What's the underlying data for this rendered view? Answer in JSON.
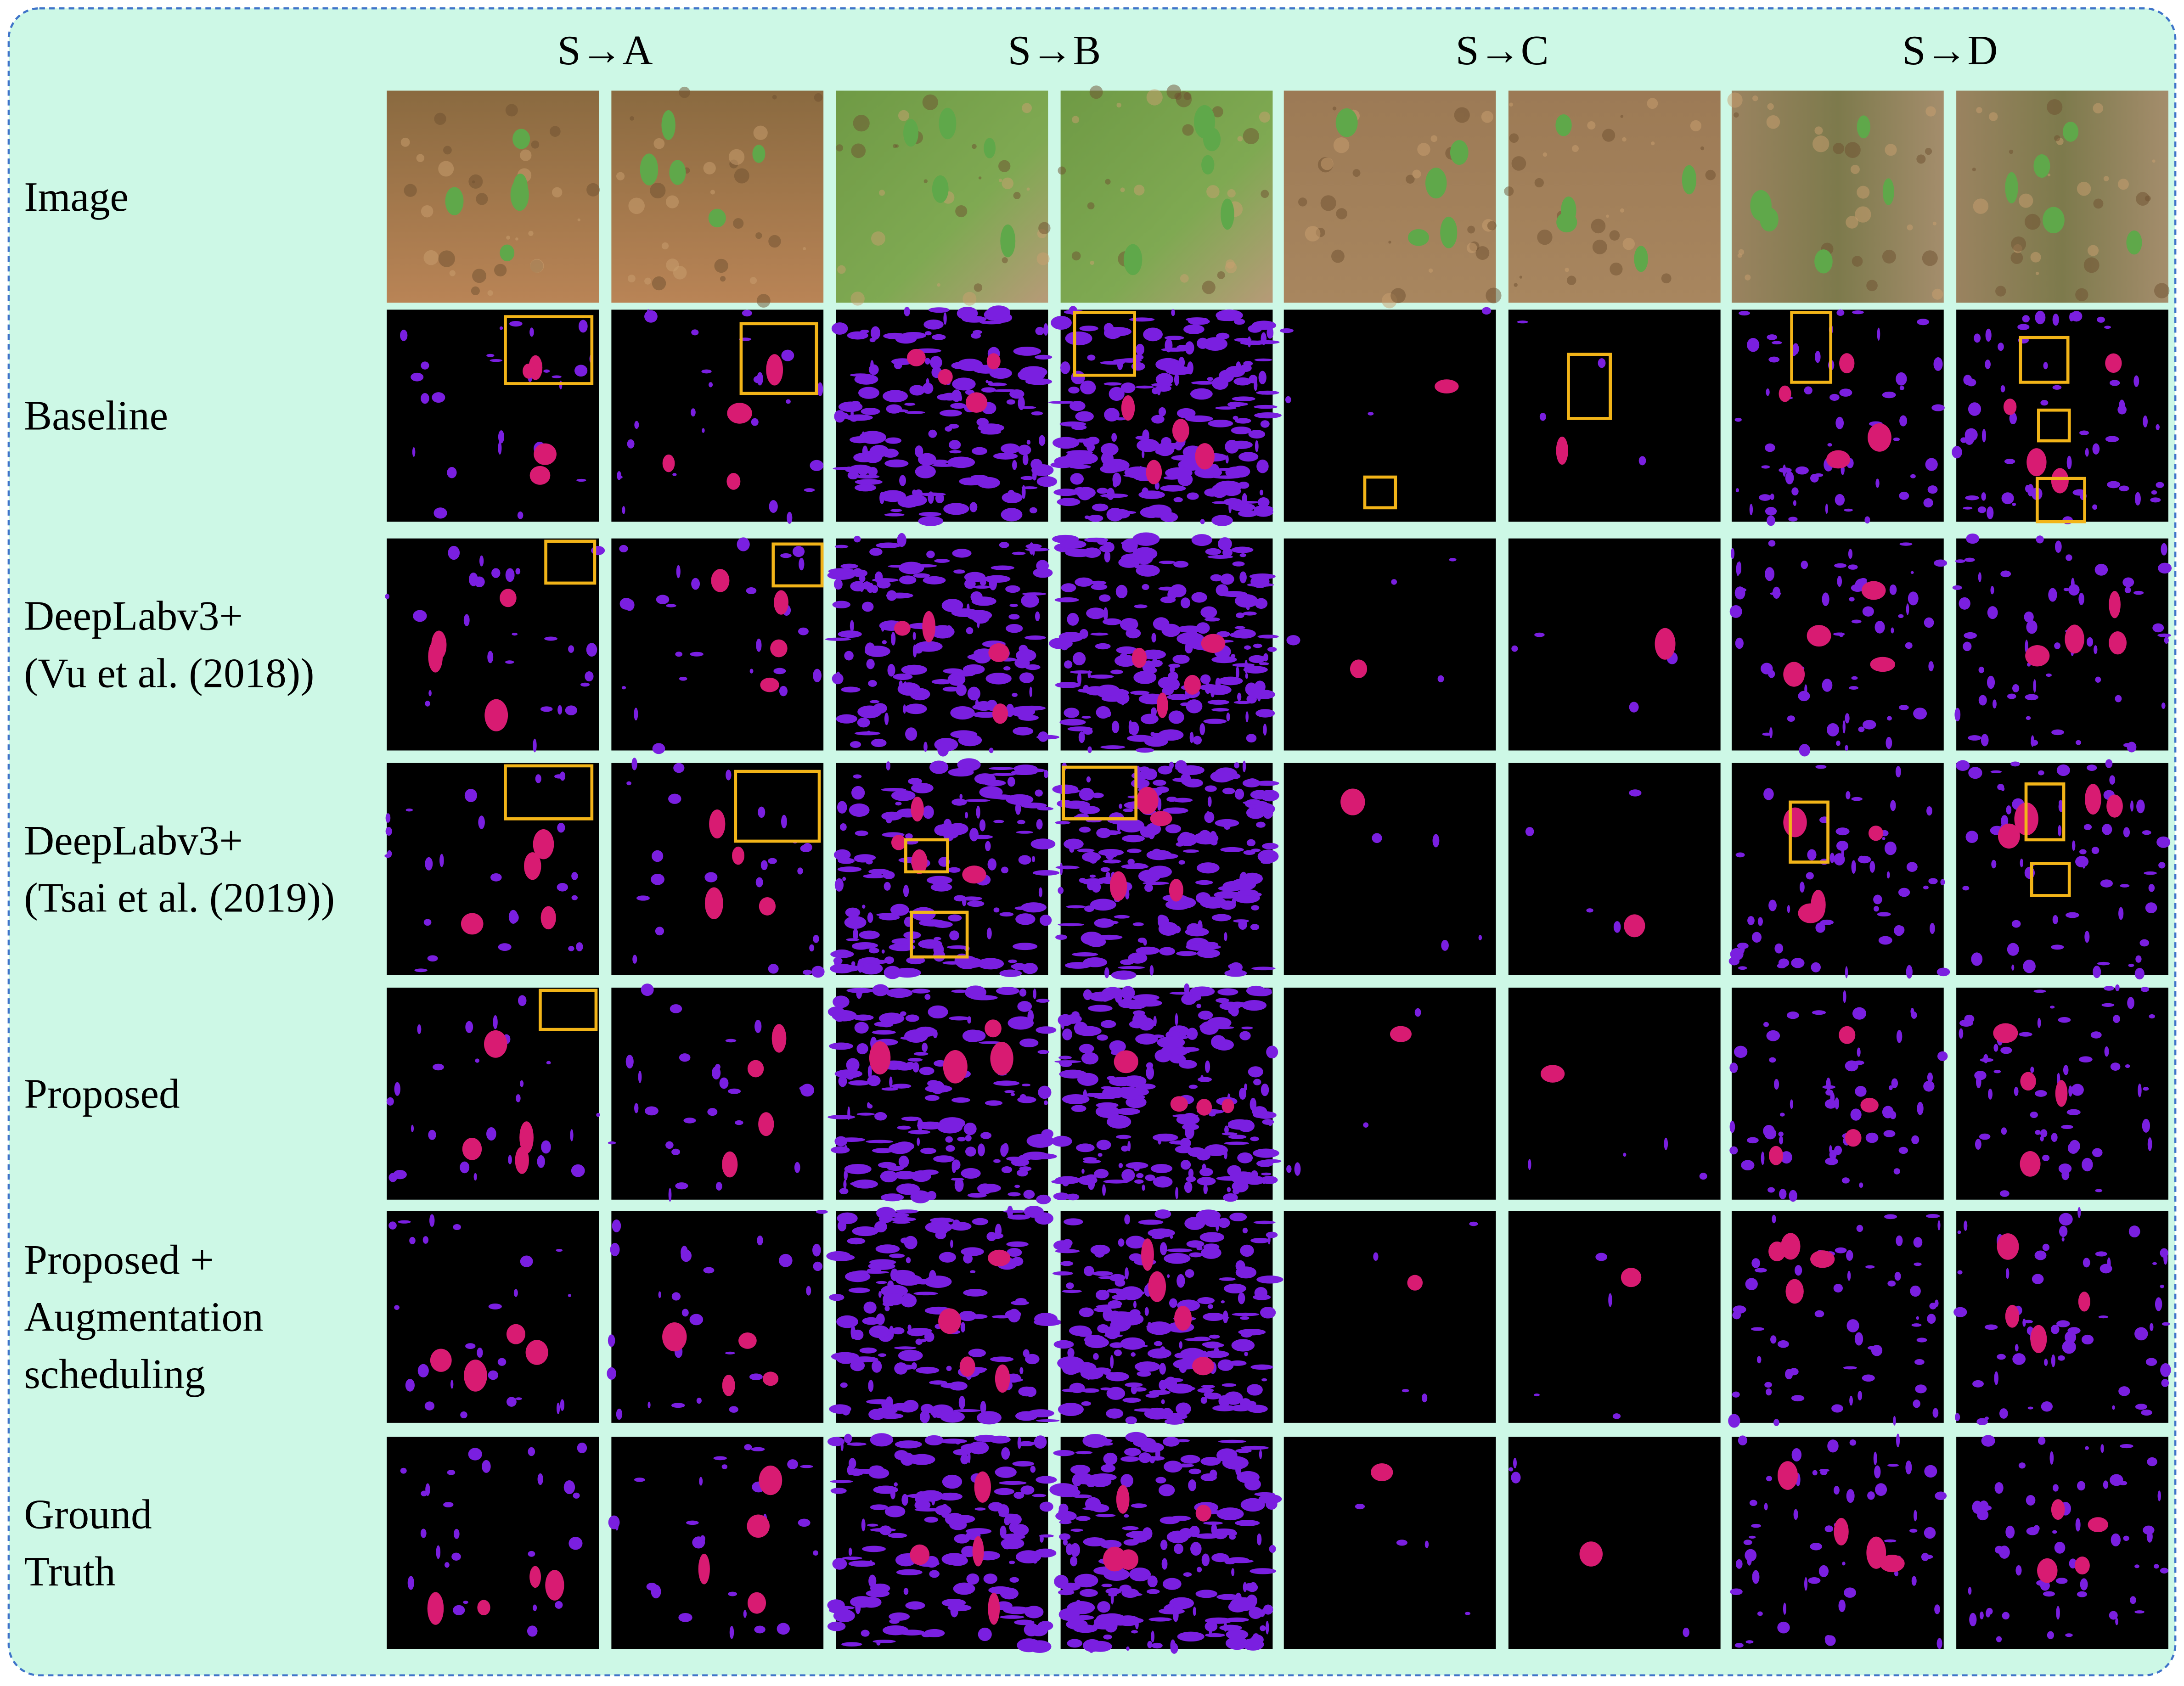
{
  "figure": {
    "columns": [
      "S→A",
      "S→B",
      "S→C",
      "S→D"
    ],
    "rows": [
      {
        "label": [
          "Image"
        ]
      },
      {
        "label": [
          "Baseline"
        ]
      },
      {
        "label": [
          "DeepLabv3+",
          "(Vu et al. (2018))"
        ]
      },
      {
        "label": [
          "DeepLabv3+",
          "(Tsai et al. (2019))"
        ]
      },
      {
        "label": [
          "Proposed"
        ]
      },
      {
        "label": [
          "Proposed +",
          "Augmentation",
          "scheduling"
        ]
      },
      {
        "label": [
          "Ground",
          "Truth"
        ]
      }
    ]
  }
}
